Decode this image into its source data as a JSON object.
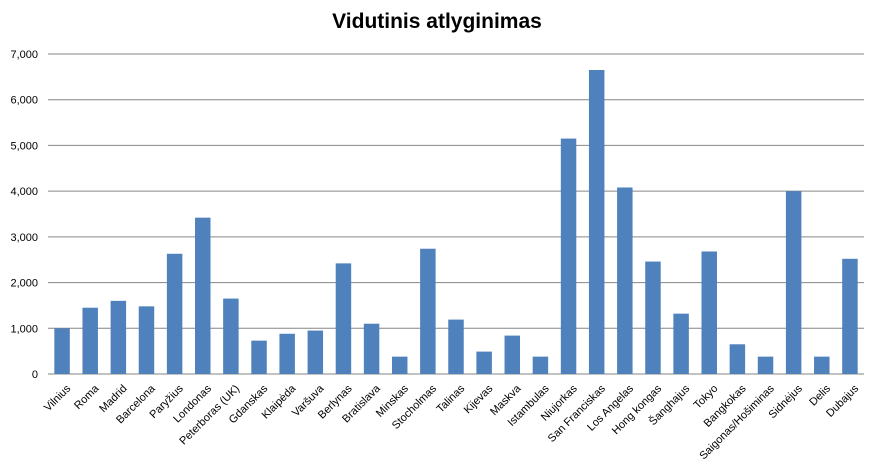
{
  "chart_data": {
    "type": "bar",
    "title": "Vidutinis atlyginimas",
    "xlabel": "",
    "ylabel": "",
    "ylim": [
      0,
      7000
    ],
    "yticks": [
      0,
      1000,
      2000,
      3000,
      4000,
      5000,
      6000,
      7000
    ],
    "ytick_labels": [
      "0",
      "1,000",
      "2,000",
      "3,000",
      "4,000",
      "5,000",
      "6,000",
      "7,000"
    ],
    "grid": true,
    "legend": "none",
    "bar_color": "#4f81bd",
    "categories": [
      "Vilnius",
      "Roma",
      "Madrid",
      "Barcelona",
      "Paryžius",
      "Londonas",
      "Peterboras (UK)",
      "Gdanskas",
      "Klaipėda",
      "Varšuva",
      "Berlynas",
      "Bratislava",
      "Minskas",
      "Stocholmas",
      "Talinas",
      "Kijevas",
      "Maskva",
      "Istambulas",
      "Niujorkas",
      "San Franciskas",
      "Los Angelas",
      "Hong kongas",
      "Šanghajus",
      "Tokyo",
      "Bangkokas",
      "Saigonas/Hošiminas",
      "Sidnėjus",
      "Delis",
      "Dubajus"
    ],
    "values": [
      1000,
      1450,
      1600,
      1480,
      2630,
      3420,
      1650,
      730,
      880,
      950,
      2420,
      1100,
      380,
      2740,
      1190,
      490,
      840,
      380,
      5150,
      6650,
      4080,
      2460,
      1320,
      2680,
      650,
      380,
      4000,
      380,
      2520
    ]
  }
}
